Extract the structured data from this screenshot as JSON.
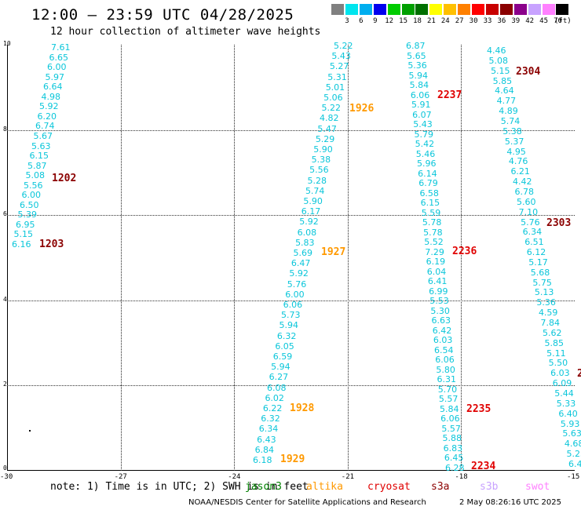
{
  "header": {
    "title": "12:00 – 23:59 UTC 04/28/2025",
    "subtitle": "12 hour collection of altimeter wave heights"
  },
  "colorbar": {
    "unit": "(ft)",
    "colors": [
      "#808080",
      "#00e5ee",
      "#00aeef",
      "#0000ee",
      "#00cc00",
      "#00a000",
      "#007000",
      "#ffff00",
      "#ffc000",
      "#ff8000",
      "#ff0000",
      "#c80000",
      "#8b0000",
      "#8b008b",
      "#c8a2ff",
      "#ff80ff",
      "#000000"
    ],
    "labels": [
      "3",
      "6",
      "9",
      "12",
      "15",
      "18",
      "21",
      "24",
      "27",
      "30",
      "33",
      "36",
      "39",
      "42",
      "45",
      "70"
    ]
  },
  "axes": {
    "x_ticks": [
      "-30",
      "-27",
      "-24",
      "-21",
      "-18",
      "-15"
    ],
    "y_ticks": [
      "0",
      "2",
      "4",
      "6",
      "8",
      "10"
    ]
  },
  "tracks": [
    {
      "values": [
        "7.61",
        "6.65",
        "6.00",
        "5.97",
        "6.64",
        "4.98",
        "5.92",
        "6.20",
        "6.74",
        "5.67",
        "5.63",
        "6.15",
        "5.87",
        "5.08",
        "5.56",
        "6.00",
        "6.50",
        "5.39",
        "6.95",
        "5.15",
        "6.16"
      ]
    },
    {
      "values": [
        "5.22",
        "5.43",
        "5.27",
        "5.31",
        "5.01",
        "5.06",
        "5.22",
        "4.82",
        "5.47",
        "5.29",
        "5.90",
        "5.38",
        "5.56",
        "5.28",
        "5.74",
        "5.90",
        "6.17",
        "5.92",
        "6.08",
        "5.83",
        "5.69",
        "6.47",
        "5.92",
        "5.76",
        "6.00",
        "6.06",
        "5.73",
        "5.94",
        "6.32",
        "6.05",
        "6.59",
        "5.94",
        "6.27",
        "6.08",
        "6.02",
        "6.22",
        "6.32",
        "6.34",
        "6.43",
        "6.84",
        "6.18"
      ]
    },
    {
      "values": [
        "6.87",
        "5.65",
        "5.36",
        "5.94",
        "5.84",
        "6.06",
        "5.91",
        "6.07",
        "5.43",
        "5.79",
        "5.42",
        "5.46",
        "5.96",
        "6.14",
        "6.79",
        "6.58",
        "6.15",
        "5.59",
        "5.78",
        "5.78",
        "5.52",
        "7.29",
        "6.19",
        "6.04",
        "6.41",
        "6.99",
        "5.53",
        "5.30",
        "6.63",
        "6.42",
        "6.03",
        "6.54",
        "6.06",
        "5.80",
        "6.31",
        "5.70",
        "5.57",
        "5.84",
        "6.06",
        "5.57",
        "5.88",
        "6.83",
        "6.45",
        "6.28"
      ]
    },
    {
      "values": [
        "4.46",
        "5.08",
        "5.15",
        "5.85",
        "4.64",
        "4.77",
        "4.89",
        "5.74",
        "5.38",
        "5.37",
        "4.95",
        "4.76",
        "6.21",
        "4.42",
        "6.78",
        "5.60",
        "7.10",
        "5.76",
        "6.34",
        "6.51",
        "6.12",
        "5.17",
        "5.68",
        "5.75",
        "5.13",
        "5.36",
        "4.59",
        "7.84",
        "5.62",
        "5.85",
        "5.11",
        "5.50",
        "6.03",
        "6.09",
        "5.44",
        "5.33",
        "6.40",
        "5.93",
        "5.63",
        "4.68",
        "5.25",
        "6.44"
      ]
    }
  ],
  "time_labels": [
    {
      "text": "1202",
      "color": "#8b0000"
    },
    {
      "text": "1203",
      "color": "#8b0000"
    },
    {
      "text": "1926",
      "color": "#ff9900"
    },
    {
      "text": "1927",
      "color": "#ff9900"
    },
    {
      "text": "1928",
      "color": "#ff9900"
    },
    {
      "text": "1929",
      "color": "#ff9900"
    },
    {
      "text": "2237",
      "color": "#e00000"
    },
    {
      "text": "2236",
      "color": "#e00000"
    },
    {
      "text": "2235",
      "color": "#e00000"
    },
    {
      "text": "2234",
      "color": "#e00000"
    },
    {
      "text": "2304",
      "color": "#8b0000"
    },
    {
      "text": "2303",
      "color": "#8b0000"
    },
    {
      "text": "2",
      "color": "#8b0000"
    }
  ],
  "footer": {
    "note": "note: 1) Time is in UTC; 2) SWH is in feet",
    "satellites": [
      {
        "name": "jason3",
        "color": "#008000"
      },
      {
        "name": "altika",
        "color": "#ff9900"
      },
      {
        "name": "cryosat",
        "color": "#e00000"
      },
      {
        "name": "s3a",
        "color": "#8b0000"
      },
      {
        "name": "s3b",
        "color": "#c8a2ff"
      },
      {
        "name": "swot",
        "color": "#ff80ff"
      }
    ],
    "credit": "NOAA/NESDIS Center for Satellite Applications and Research",
    "timestamp": "2 May 08:26:16 UTC 2025"
  }
}
